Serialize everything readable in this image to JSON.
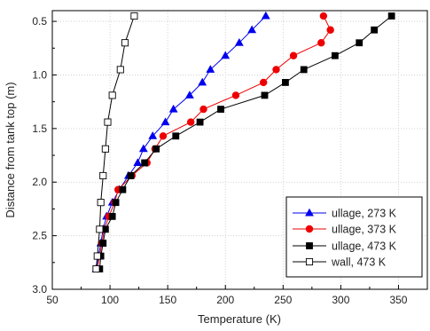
{
  "chart_data": {
    "type": "line",
    "title": "",
    "xlabel": "Temperature (K)",
    "ylabel": "Distance from tank top (m)",
    "xlim": [
      50,
      375
    ],
    "ylim": [
      3.0,
      0.4
    ],
    "y_inverted": true,
    "x_ticks": [
      "50",
      "100",
      "150",
      "200",
      "250",
      "300",
      "350"
    ],
    "x_tick_values": [
      50,
      100,
      150,
      200,
      250,
      300,
      350
    ],
    "y_ticks": [
      "0.5",
      "1.0",
      "1.5",
      "2.0",
      "2.5",
      "3.0"
    ],
    "y_tick_values": [
      0.5,
      1.0,
      1.5,
      2.0,
      2.5,
      3.0
    ],
    "grid": true,
    "legend_position": "bottom-right",
    "series": [
      {
        "name": "ullage, 273 K",
        "color": "#0000ee",
        "marker": "triangle",
        "points": [
          [
            235,
            0.45
          ],
          [
            223,
            0.58
          ],
          [
            212,
            0.7
          ],
          [
            200,
            0.82
          ],
          [
            187,
            0.95
          ],
          [
            180,
            1.07
          ],
          [
            169,
            1.19
          ],
          [
            155,
            1.32
          ],
          [
            148,
            1.44
          ],
          [
            137,
            1.57
          ],
          [
            129,
            1.69
          ],
          [
            124,
            1.82
          ],
          [
            116,
            1.94
          ],
          [
            108,
            2.07
          ],
          [
            102,
            2.19
          ],
          [
            97,
            2.32
          ],
          [
            94,
            2.44
          ],
          [
            92,
            2.57
          ],
          [
            90,
            2.69
          ],
          [
            88,
            2.81
          ]
        ]
      },
      {
        "name": "ullage, 373 K",
        "color": "#ee0000",
        "marker": "circle",
        "points": [
          [
            285,
            0.45
          ],
          [
            291,
            0.58
          ],
          [
            283,
            0.7
          ],
          [
            259,
            0.82
          ],
          [
            244,
            0.95
          ],
          [
            233,
            1.07
          ],
          [
            209,
            1.19
          ],
          [
            181,
            1.32
          ],
          [
            170,
            1.44
          ],
          [
            146,
            1.57
          ],
          [
            139,
            1.69
          ],
          [
            132,
            1.82
          ],
          [
            119,
            1.94
          ],
          [
            107,
            2.07
          ],
          [
            104,
            2.19
          ],
          [
            99,
            2.32
          ],
          [
            95,
            2.44
          ],
          [
            93,
            2.57
          ],
          [
            91,
            2.69
          ],
          [
            89,
            2.81
          ]
        ]
      },
      {
        "name": "ullage, 473 K",
        "color": "#000000",
        "marker": "square",
        "points": [
          [
            344,
            0.45
          ],
          [
            329,
            0.58
          ],
          [
            316,
            0.7
          ],
          [
            295,
            0.82
          ],
          [
            268,
            0.95
          ],
          [
            252,
            1.07
          ],
          [
            234,
            1.19
          ],
          [
            196,
            1.32
          ],
          [
            178,
            1.44
          ],
          [
            157,
            1.57
          ],
          [
            140,
            1.69
          ],
          [
            130,
            1.82
          ],
          [
            118,
            1.94
          ],
          [
            111,
            2.07
          ],
          [
            105,
            2.19
          ],
          [
            102,
            2.32
          ],
          [
            96,
            2.44
          ],
          [
            94,
            2.57
          ],
          [
            92,
            2.69
          ],
          [
            91,
            2.81
          ]
        ]
      },
      {
        "name": "wall, 473 K",
        "color": "#000000",
        "marker": "open-square",
        "points": [
          [
            121,
            0.45
          ],
          [
            113,
            0.7
          ],
          [
            109,
            0.95
          ],
          [
            102,
            1.19
          ],
          [
            98,
            1.44
          ],
          [
            96,
            1.69
          ],
          [
            94,
            1.94
          ],
          [
            92,
            2.19
          ],
          [
            91,
            2.44
          ],
          [
            89,
            2.69
          ],
          [
            88,
            2.81
          ]
        ]
      }
    ]
  }
}
